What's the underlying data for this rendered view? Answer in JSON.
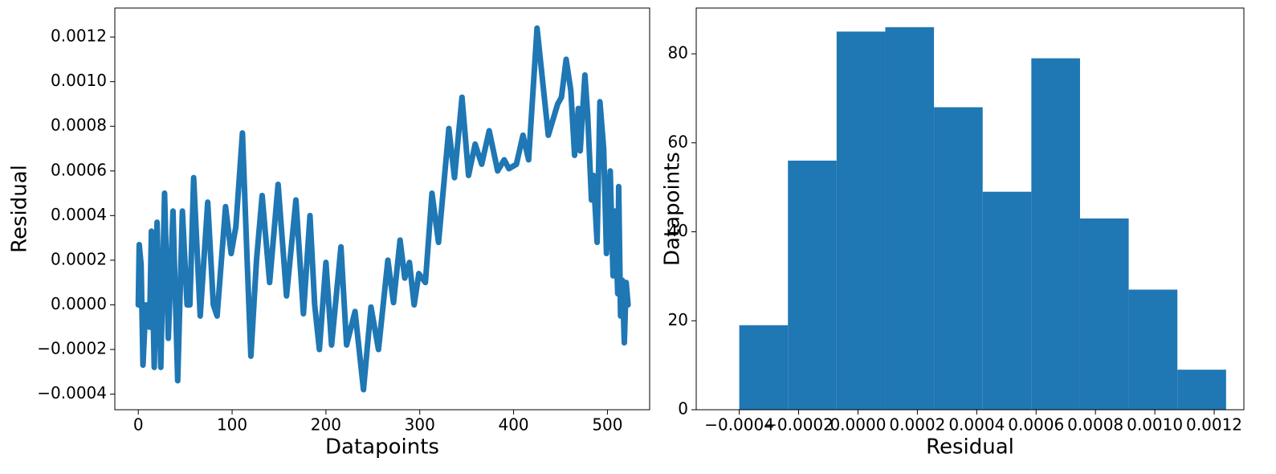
{
  "chart_data": [
    {
      "type": "line",
      "xlabel": "Datapoints",
      "ylabel": "Residual",
      "x": [
        0,
        1,
        3,
        5,
        8,
        12,
        14,
        17,
        20,
        24,
        28,
        32,
        37,
        42,
        47,
        52,
        55,
        59,
        66,
        74,
        80,
        84,
        93,
        99,
        104,
        111,
        116,
        120,
        126,
        132,
        140,
        149,
        158,
        168,
        176,
        183,
        188,
        193,
        200,
        206,
        216,
        222,
        231,
        240,
        248,
        256,
        266,
        272,
        279,
        284,
        289,
        294,
        299,
        306,
        313,
        320,
        331,
        337,
        345,
        352,
        359,
        366,
        374,
        383,
        390,
        395,
        403,
        410,
        416,
        425,
        437,
        447,
        451,
        456,
        461,
        465,
        469,
        471,
        476,
        479,
        483,
        485,
        489,
        492,
        496,
        499,
        503,
        506,
        508,
        511,
        512,
        514,
        516,
        518,
        520,
        522
      ],
      "values": [
        0,
        0.00027,
        0.00018,
        -0.00027,
        0,
        -0.0001,
        0.00033,
        -0.00028,
        0.00037,
        -0.00028,
        0.0005,
        -0.00015,
        0.00042,
        -0.00034,
        0.00042,
        0,
        0,
        0.00057,
        -5e-05,
        0.00046,
        0,
        -5e-05,
        0.00044,
        0.00023,
        0.00035,
        0.00077,
        0.0002,
        -0.00023,
        0.0002,
        0.00049,
        0.0001,
        0.00054,
        4e-05,
        0.00047,
        -4e-05,
        0.0004,
        0,
        -0.0002,
        0.00019,
        -0.00018,
        0.00026,
        -0.00018,
        -3e-05,
        -0.00038,
        -1e-05,
        -0.0002,
        0.0002,
        1e-05,
        0.00029,
        0.00012,
        0.00019,
        0,
        0.00014,
        0.0001,
        0.0005,
        0.00028,
        0.00079,
        0.00057,
        0.00093,
        0.00058,
        0.00072,
        0.00063,
        0.00078,
        0.0006,
        0.00065,
        0.00061,
        0.00063,
        0.00076,
        0.00065,
        0.00124,
        0.00076,
        0.0009,
        0.00093,
        0.0011,
        0.00096,
        0.00067,
        0.00088,
        0.00069,
        0.00103,
        0.00085,
        0.00047,
        0.00058,
        0.00028,
        0.00091,
        0.0007,
        0.00023,
        0.0006,
        0.00013,
        0.00042,
        5e-05,
        0.00053,
        -5e-05,
        0.00011,
        -0.00017,
        0.0001,
        0
      ],
      "color": "#1f77b4",
      "xlim": [
        -25,
        545
      ],
      "ylim": [
        -0.00047,
        0.00133
      ],
      "xticks": [
        0,
        100,
        200,
        300,
        400,
        500
      ],
      "yticks": [
        {
          "value": -0.0004,
          "label": "−0.0004"
        },
        {
          "value": -0.0002,
          "label": "−0.0002"
        },
        {
          "value": 0,
          "label": "0.0000"
        },
        {
          "value": 0.0002,
          "label": "0.0002"
        },
        {
          "value": 0.0004,
          "label": "0.0004"
        },
        {
          "value": 0.0006,
          "label": "0.0006"
        },
        {
          "value": 0.0008,
          "label": "0.0008"
        },
        {
          "value": 0.001,
          "label": "0.0010"
        },
        {
          "value": 0.0012,
          "label": "0.0012"
        }
      ],
      "grid": false
    },
    {
      "type": "histogram",
      "xlabel": "Residual",
      "ylabel": "Datapoints",
      "bins": [
        -0.0004,
        -0.000236,
        -7.2e-05,
        9.2e-05,
        0.000256,
        0.00042,
        0.000584,
        0.000748,
        0.000912,
        0.001076,
        0.00124
      ],
      "values": [
        19,
        56,
        85,
        86,
        68,
        49,
        79,
        43,
        27,
        9
      ],
      "color": "#1f77b4",
      "xlim": [
        -0.000545,
        0.0013
      ],
      "ylim": [
        0,
        90.3
      ],
      "xticks": [
        {
          "value": -0.0004,
          "label": "−0.0004"
        },
        {
          "value": -0.0002,
          "label": "−0.0002"
        },
        {
          "value": 0,
          "label": "0.0000"
        },
        {
          "value": 0.0002,
          "label": "0.0002"
        },
        {
          "value": 0.0004,
          "label": "0.0004"
        },
        {
          "value": 0.0006,
          "label": "0.0006"
        },
        {
          "value": 0.0008,
          "label": "0.0008"
        },
        {
          "value": 0.001,
          "label": "0.0010"
        },
        {
          "value": 0.0012,
          "label": "0.0012"
        }
      ],
      "yticks": [
        0,
        20,
        40,
        60,
        80
      ],
      "grid": false
    }
  ]
}
